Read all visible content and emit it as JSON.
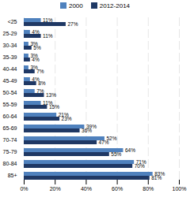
{
  "chart_data": {
    "type": "bar",
    "orientation": "horizontal",
    "categories": [
      "<25",
      "25-29",
      "30-34",
      "35-39",
      "40-44",
      "45-49",
      "50-54",
      "55-59",
      "60-64",
      "65-69",
      "70-74",
      "75-79",
      "80-84",
      "85+"
    ],
    "series": [
      {
        "name": "2000",
        "color": "#4f81bd",
        "values": [
          11,
          4,
          3,
          3,
          3,
          4,
          7,
          11,
          21,
          39,
          52,
          64,
          71,
          83
        ],
        "value_labels": [
          "11%",
          "4%",
          "3%",
          "3%",
          "3%",
          "4%",
          "7%",
          "11%",
          "21%",
          "39%",
          "52%",
          "64%",
          "71%",
          "83%"
        ]
      },
      {
        "name": "2012-2014",
        "color": "#1f3864",
        "values": [
          27,
          11,
          5,
          4,
          7,
          8,
          13,
          15,
          23,
          36,
          47,
          55,
          70,
          81
        ],
        "value_labels": [
          "27%",
          "11%",
          "5%",
          "4%",
          "7%",
          "8%",
          "13%",
          "15%",
          "23%",
          "36%",
          "47%",
          "55%",
          "70%",
          "81%"
        ]
      }
    ],
    "xlim": [
      0,
      100
    ],
    "xticks": [
      {
        "value": 0,
        "label": "0%"
      },
      {
        "value": 20,
        "label": "20%"
      },
      {
        "value": 40,
        "label": "40%"
      },
      {
        "value": 60,
        "label": "60%"
      },
      {
        "value": 80,
        "label": "80%"
      },
      {
        "value": 100,
        "label": "100%"
      }
    ],
    "grid": true,
    "legend": "top",
    "data_labels": true
  }
}
